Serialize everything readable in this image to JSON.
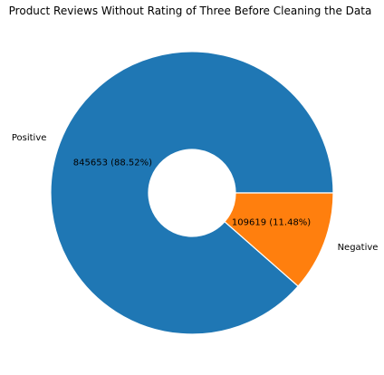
{
  "chart_data": {
    "type": "pie",
    "variant": "donut",
    "title": "Product Reviews Without Rating of Three Before Cleaning the Data",
    "slices": [
      {
        "label": "Positive",
        "value": 845653,
        "percent_text": "845653  (88.52%)",
        "color": "#1f77b4"
      },
      {
        "label": "Negative",
        "value": 109619,
        "percent_text": "109619  (11.48%)",
        "color": "#ff7f0e"
      }
    ],
    "start_angle_deg": 0,
    "direction": "counterclockwise",
    "edge_color": "#ffffff",
    "hole_color": "#ffffff"
  }
}
